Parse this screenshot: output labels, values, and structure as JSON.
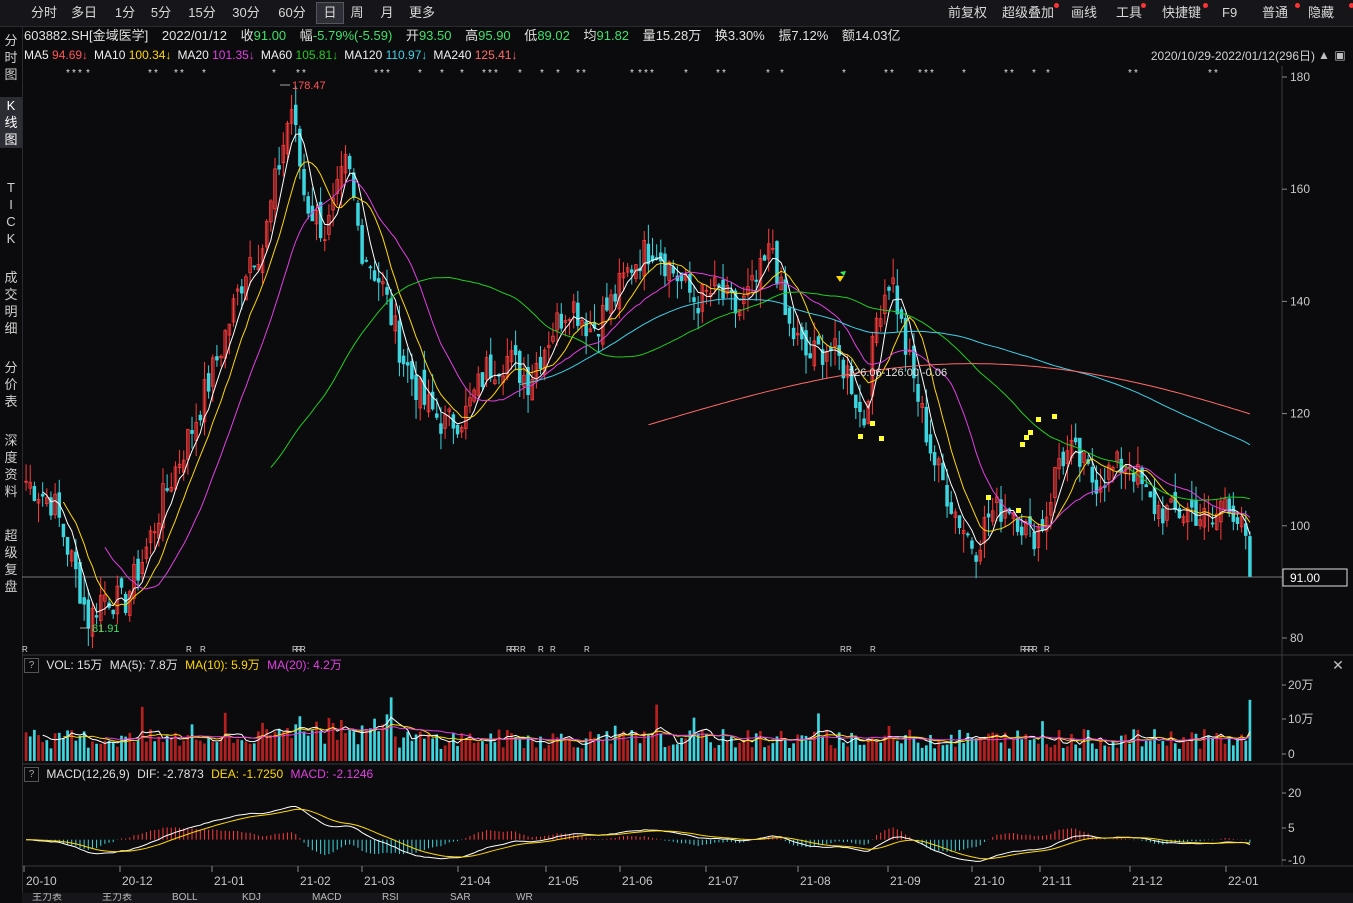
{
  "toolbar": {
    "left": [
      "分时",
      "多日",
      "1分",
      "5分",
      "15分",
      "30分",
      "60分",
      "日",
      "周",
      "月",
      "更多"
    ],
    "active_index": 7,
    "right": [
      "前复权",
      "超级叠加",
      "画线",
      "工具",
      "快捷键",
      "F9",
      "普通",
      "隐藏"
    ]
  },
  "sidebar": [
    {
      "label": "分\n时\n图",
      "active": false
    },
    {
      "label": "K\n线\n图",
      "active": true
    },
    {
      "label": "T\nI\nC\nK",
      "active": false
    },
    {
      "label": "成\n交\n明\n细",
      "active": false
    },
    {
      "label": "分\n价\n表",
      "active": false
    },
    {
      "label": "深\n度\n资\n料",
      "active": false
    },
    {
      "label": "超\n级\n复\n盘",
      "active": false
    }
  ],
  "info": {
    "code": "603882.SH[金域医学]",
    "date": "2022/01/12",
    "close_label": "收",
    "close": "91.00",
    "change_label": "幅",
    "change": "-5.79%(-5.59)",
    "open_label": "开",
    "open": "93.50",
    "high_label": "高",
    "high": "95.90",
    "low_label": "低",
    "low": "89.02",
    "avg_label": "均",
    "avg": "91.82",
    "vol_label": "量",
    "vol": "15.28万",
    "turnover_label": "换",
    "turnover": "3.30%",
    "amp_label": "振",
    "amp": "7.12%",
    "amount_label": "额",
    "amount": "14.03亿"
  },
  "ma": [
    {
      "name": "MA5",
      "value": "94.69↓",
      "color": "#f0f0f0",
      "value_color": "#ff5555"
    },
    {
      "name": "MA10",
      "value": "100.34↓",
      "color": "#f0f0f0",
      "value_color": "#ffd800"
    },
    {
      "name": "MA20",
      "value": "101.35↓",
      "color": "#f0f0f0",
      "value_color": "#e040e0"
    },
    {
      "name": "MA60",
      "value": "105.81↓",
      "color": "#f0f0f0",
      "value_color": "#22cc22"
    },
    {
      "name": "MA120",
      "value": "110.97↓",
      "color": "#f0f0f0",
      "value_color": "#40d0e8"
    },
    {
      "name": "MA240",
      "value": "125.41↓",
      "color": "#f0f0f0",
      "value_color": "#ff6a6a"
    }
  ],
  "range": "2020/10/29-2022/01/12(296日)",
  "price_axis": {
    "ticks": [
      180,
      160,
      140,
      120,
      100,
      80
    ],
    "last": "91.00"
  },
  "annotations": {
    "high": "178.47",
    "low": "81.91",
    "measure": "126.06-126.00  -0.06"
  },
  "volume": {
    "label": "VOL: 15万",
    "ma5": "MA(5): 7.8万",
    "ma10": "MA(10): 5.9万",
    "ma20": "MA(20): 4.2万",
    "ticks": [
      "20万",
      "10万",
      "0"
    ]
  },
  "macd": {
    "label": "MACD(12,26,9)",
    "dif": "DIF: -2.7873",
    "dea": "DEA: -1.7250",
    "macd": "MACD: -2.1246",
    "ticks": [
      "20",
      "5",
      "-10"
    ]
  },
  "dates": [
    "20-10",
    "20-12",
    "21-01",
    "21-02",
    "21-03",
    "21-04",
    "21-05",
    "21-06",
    "21-07",
    "21-08",
    "21-09",
    "21-10",
    "21-11",
    "21-12",
    "22-01"
  ],
  "bottom_tabs": [
    "主力表",
    "主力表",
    "BOLL",
    "KDJ",
    "MACD",
    "RSI",
    "SAR",
    "WR"
  ],
  "colors": {
    "up": "#ff3b3b",
    "down": "#3dd6e0",
    "ma5": "#ffffff",
    "ma10": "#ffd800",
    "ma20": "#e040e0",
    "ma60": "#22cc22",
    "ma120": "#40d0e8",
    "ma240": "#ff6a6a"
  }
}
